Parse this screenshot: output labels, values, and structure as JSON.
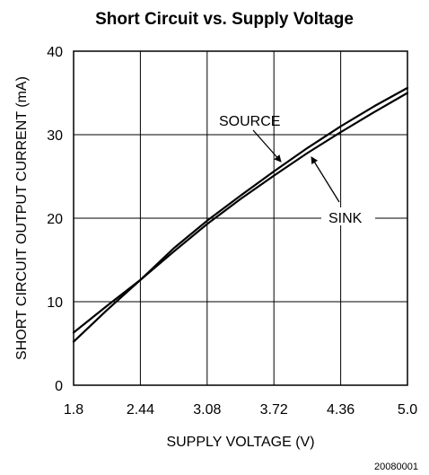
{
  "chart_data": {
    "type": "line",
    "title": "Short Circuit vs. Supply Voltage",
    "xlabel": "SUPPLY VOLTAGE (V)",
    "ylabel": "SHORT CIRCUIT OUTPUT CURRENT (mA)",
    "xlim": [
      1.8,
      5.0
    ],
    "ylim": [
      0,
      40
    ],
    "x_ticks": [
      1.8,
      2.44,
      3.08,
      3.72,
      4.36,
      5.0
    ],
    "x_tick_labels": [
      "1.8",
      "2.44",
      "3.08",
      "3.72",
      "4.36",
      "5.0"
    ],
    "y_ticks": [
      0,
      10,
      20,
      30,
      40
    ],
    "y_tick_labels": [
      "0",
      "10",
      "20",
      "30",
      "40"
    ],
    "grid": true,
    "series": [
      {
        "name": "SOURCE",
        "x": [
          1.8,
          2.12,
          2.44,
          2.76,
          3.08,
          3.4,
          3.72,
          4.04,
          4.36,
          4.68,
          5.0
        ],
        "y": [
          6.3,
          9.5,
          12.6,
          16.4,
          19.7,
          22.7,
          25.6,
          28.4,
          31.0,
          33.4,
          35.6
        ]
      },
      {
        "name": "SINK",
        "x": [
          1.8,
          2.12,
          2.44,
          2.76,
          3.08,
          3.4,
          3.72,
          4.04,
          4.36,
          4.68,
          5.0
        ],
        "y": [
          5.2,
          9.0,
          12.6,
          16.0,
          19.3,
          22.3,
          25.1,
          27.8,
          30.3,
          32.7,
          35.0
        ]
      }
    ],
    "annotations": [
      {
        "text": "SOURCE",
        "points_to": "SOURCE"
      },
      {
        "text": "SINK",
        "points_to": "SINK"
      }
    ],
    "footnote": "20080001"
  }
}
